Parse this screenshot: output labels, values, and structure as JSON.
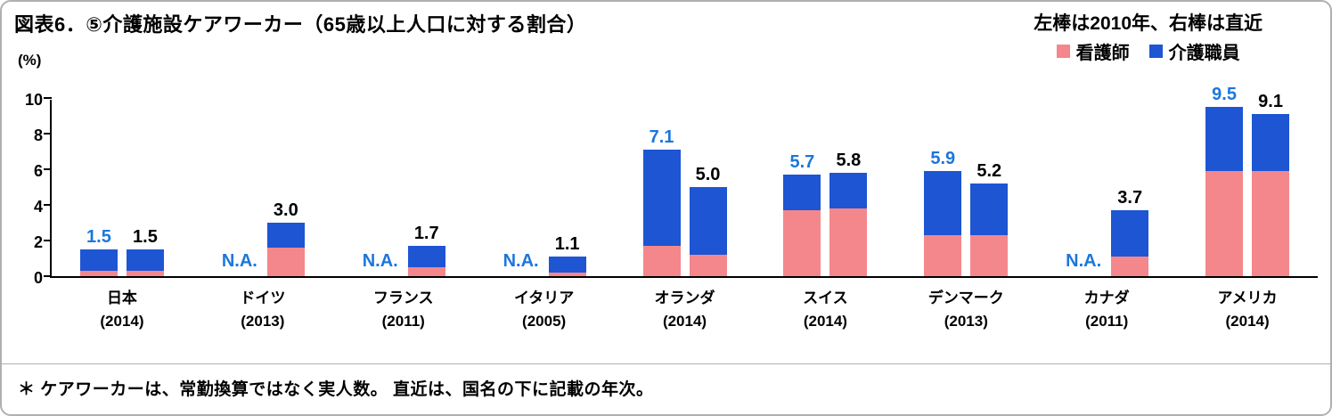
{
  "header": {
    "title": "図表6．⑤介護施設ケアワーカー（65歳以上人口に対する割合）",
    "note": "左棒は2010年、右棒は直近"
  },
  "legend": [
    {
      "label": "看護師",
      "color": "#F4878C"
    },
    {
      "label": "介護職員",
      "color": "#1D55D3"
    }
  ],
  "footnote": "＊ ケアワーカーは、常勤換算ではなく実人数。 直近は、国名の下に記載の年次。",
  "chart_data": {
    "type": "bar",
    "stacked": true,
    "title": "図表6．⑤介護施設ケアワーカー（65歳以上人口に対する割合）",
    "ylabel": "(%)",
    "ylim": [
      0,
      10
    ],
    "yticks": [
      0,
      2,
      4,
      6,
      8,
      10
    ],
    "grid": false,
    "bar_meaning": {
      "left": "2010年",
      "right": "直近"
    },
    "segments": [
      {
        "key": "nurse",
        "label": "看護師",
        "color": "#F4878C"
      },
      {
        "key": "care",
        "label": "介護職員",
        "color": "#1D55D3"
      }
    ],
    "label_colors": {
      "left": "#1C76DC",
      "right": "#000000"
    },
    "groups": [
      {
        "country": "日本",
        "year": "(2014)",
        "left": {
          "na": false,
          "total": 1.5,
          "nurse": 0.3,
          "care": 1.2,
          "label": "1.5"
        },
        "right": {
          "na": false,
          "total": 1.5,
          "nurse": 0.3,
          "care": 1.2,
          "label": "1.5"
        }
      },
      {
        "country": "ドイツ",
        "year": "(2013)",
        "left": {
          "na": true,
          "label": "N.A."
        },
        "right": {
          "na": false,
          "total": 3.0,
          "nurse": 1.6,
          "care": 1.4,
          "label": "3.0"
        }
      },
      {
        "country": "フランス",
        "year": "(2011)",
        "left": {
          "na": true,
          "label": "N.A."
        },
        "right": {
          "na": false,
          "total": 1.7,
          "nurse": 0.5,
          "care": 1.2,
          "label": "1.7"
        }
      },
      {
        "country": "イタリア",
        "year": "(2005)",
        "left": {
          "na": true,
          "label": "N.A."
        },
        "right": {
          "na": false,
          "total": 1.1,
          "nurse": 0.2,
          "care": 0.9,
          "label": "1.1"
        }
      },
      {
        "country": "オランダ",
        "year": "(2014)",
        "left": {
          "na": false,
          "total": 7.1,
          "nurse": 1.7,
          "care": 5.4,
          "label": "7.1"
        },
        "right": {
          "na": false,
          "total": 5.0,
          "nurse": 1.2,
          "care": 3.8,
          "label": "5.0"
        }
      },
      {
        "country": "スイス",
        "year": "(2014)",
        "left": {
          "na": false,
          "total": 5.7,
          "nurse": 3.7,
          "care": 2.0,
          "label": "5.7"
        },
        "right": {
          "na": false,
          "total": 5.8,
          "nurse": 3.8,
          "care": 2.0,
          "label": "5.8"
        }
      },
      {
        "country": "デンマーク",
        "year": "(2013)",
        "left": {
          "na": false,
          "total": 5.9,
          "nurse": 2.3,
          "care": 3.6,
          "label": "5.9"
        },
        "right": {
          "na": false,
          "total": 5.2,
          "nurse": 2.3,
          "care": 2.9,
          "label": "5.2"
        }
      },
      {
        "country": "カナダ",
        "year": "(2011)",
        "left": {
          "na": true,
          "label": "N.A."
        },
        "right": {
          "na": false,
          "total": 3.7,
          "nurse": 1.1,
          "care": 2.6,
          "label": "3.7"
        }
      },
      {
        "country": "アメリカ",
        "year": "(2014)",
        "left": {
          "na": false,
          "total": 9.5,
          "nurse": 5.9,
          "care": 3.6,
          "label": "9.5"
        },
        "right": {
          "na": false,
          "total": 9.1,
          "nurse": 5.9,
          "care": 3.2,
          "label": "9.1"
        }
      }
    ]
  }
}
